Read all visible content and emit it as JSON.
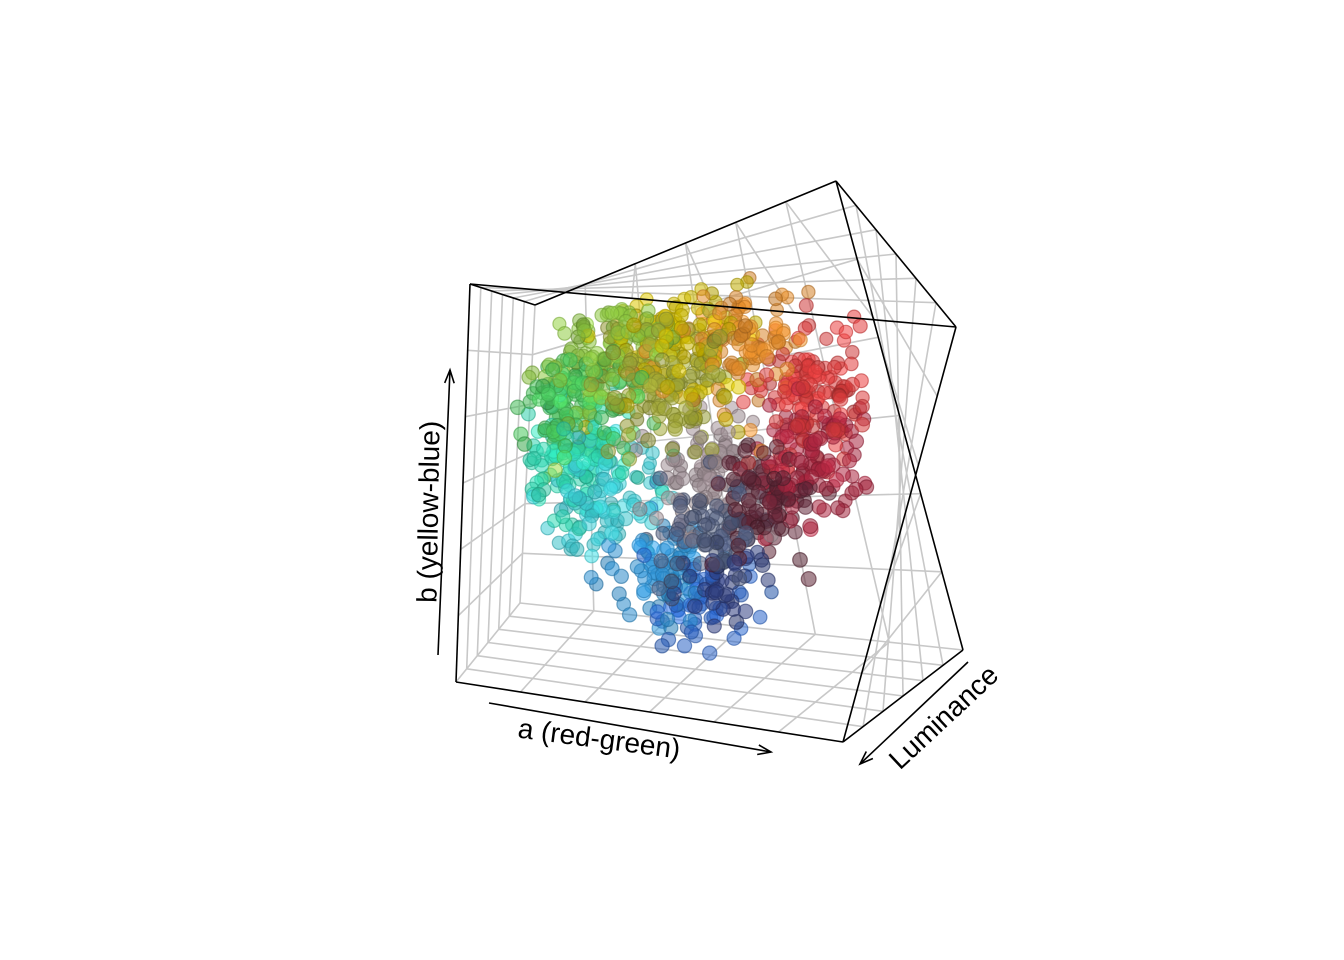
{
  "chart_data": {
    "type": "scatter",
    "title": "",
    "xlabel": "a (red-green)",
    "ylabel": "b (yellow-blue)",
    "zlabel": "Luminance",
    "grid": true,
    "legend": "none",
    "point_style": "semi-transparent filled circles colored by their own Lab color",
    "clusters": [
      {
        "region": "green-yellow",
        "a": -0.55,
        "b": 0.8,
        "L": 0.55,
        "spread": 0.22,
        "count": 170,
        "color": "#8cc63f"
      },
      {
        "region": "yellow",
        "a": -0.15,
        "b": 0.85,
        "L": 0.6,
        "spread": 0.22,
        "count": 140,
        "color": "#c8b400"
      },
      {
        "region": "olive",
        "a": -0.2,
        "b": 0.55,
        "L": 0.45,
        "spread": 0.2,
        "count": 140,
        "color": "#9aa034"
      },
      {
        "region": "orange",
        "a": 0.25,
        "b": 0.8,
        "L": 0.55,
        "spread": 0.2,
        "count": 120,
        "color": "#e08a2a"
      },
      {
        "region": "red",
        "a": 0.7,
        "b": 0.45,
        "L": 0.5,
        "spread": 0.18,
        "count": 140,
        "color": "#d63a3a"
      },
      {
        "region": "crimson",
        "a": 0.65,
        "b": 0.15,
        "L": 0.3,
        "spread": 0.16,
        "count": 110,
        "color": "#a8253e"
      },
      {
        "region": "dark-maroon",
        "a": 0.45,
        "b": -0.05,
        "L": 0.2,
        "spread": 0.16,
        "count": 90,
        "color": "#5a2434"
      },
      {
        "region": "green",
        "a": -0.75,
        "b": 0.45,
        "L": 0.5,
        "spread": 0.18,
        "count": 130,
        "color": "#46c25a"
      },
      {
        "region": "teal",
        "a": -0.8,
        "b": 0.05,
        "L": 0.55,
        "spread": 0.18,
        "count": 140,
        "color": "#2fd6b0"
      },
      {
        "region": "cyan",
        "a": -0.55,
        "b": -0.2,
        "L": 0.55,
        "spread": 0.18,
        "count": 100,
        "color": "#3ccad2"
      },
      {
        "region": "grey-mauve",
        "a": 0.05,
        "b": 0.0,
        "L": 0.55,
        "spread": 0.18,
        "count": 110,
        "color": "#9a8a90"
      },
      {
        "region": "slate",
        "a": 0.15,
        "b": -0.3,
        "L": 0.35,
        "spread": 0.16,
        "count": 80,
        "color": "#4c5878"
      },
      {
        "region": "blue",
        "a": -0.2,
        "b": -0.6,
        "L": 0.45,
        "spread": 0.15,
        "count": 80,
        "color": "#2b8fd0"
      },
      {
        "region": "royal-blue",
        "a": 0.05,
        "b": -0.8,
        "L": 0.4,
        "spread": 0.12,
        "count": 50,
        "color": "#2a64c8"
      },
      {
        "region": "navy",
        "a": 0.25,
        "b": -0.55,
        "L": 0.25,
        "spread": 0.12,
        "count": 40,
        "color": "#2c3a78"
      }
    ]
  }
}
